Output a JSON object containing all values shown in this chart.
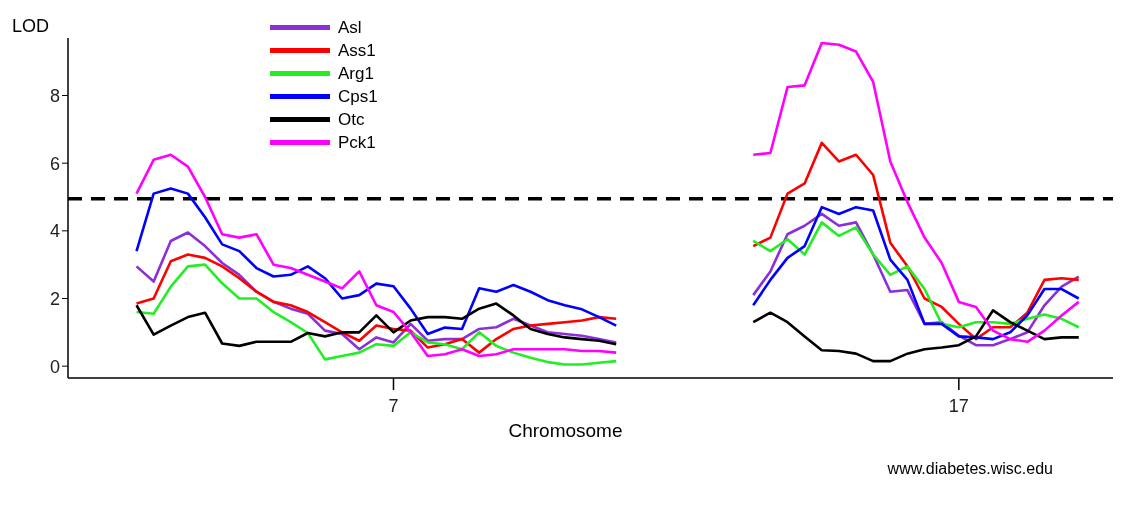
{
  "chart_data": {
    "type": "line",
    "xlabel": "Chromosome",
    "ylabel": "LOD",
    "categories": [
      null,
      null,
      null,
      null,
      null,
      null,
      null,
      null,
      null,
      null,
      null,
      null,
      null,
      null,
      null,
      null,
      null,
      null,
      null,
      "7",
      null,
      null,
      null,
      null,
      null,
      null,
      null,
      null,
      null,
      null,
      null,
      null,
      null,
      null,
      null,
      null,
      null,
      null,
      null,
      null,
      null,
      null,
      null,
      null,
      null,
      null,
      null,
      null,
      null,
      null,
      null,
      null,
      "17",
      null,
      null,
      null,
      null,
      null,
      null,
      null,
      null,
      null
    ],
    "series": [
      {
        "name": "Asl",
        "color": "#8b2fd8",
        "values": [
          null,
          null,
          null,
          null,
          2.95,
          2.5,
          3.7,
          3.95,
          3.55,
          3.05,
          2.7,
          2.2,
          1.9,
          1.7,
          1.55,
          1.05,
          0.95,
          0.5,
          0.85,
          0.7,
          1.25,
          0.75,
          0.8,
          0.8,
          1.1,
          1.15,
          1.4,
          1.2,
          1.0,
          0.95,
          0.9,
          0.8,
          0.7,
          null,
          null,
          null,
          null,
          null,
          null,
          null,
          2.1,
          2.8,
          3.9,
          4.15,
          4.5,
          4.15,
          4.25,
          3.3,
          2.2,
          2.25,
          1.25,
          1.3,
          0.9,
          0.62,
          0.62,
          0.8,
          1.0,
          1.8,
          2.35,
          2.65,
          null,
          null
        ]
      },
      {
        "name": "Ass1",
        "color": "#ff0000",
        "values": [
          null,
          null,
          null,
          null,
          1.85,
          2.0,
          3.1,
          3.3,
          3.2,
          2.95,
          2.6,
          2.2,
          1.9,
          1.8,
          1.6,
          1.3,
          1.0,
          0.75,
          1.2,
          1.1,
          1.05,
          0.55,
          0.65,
          0.8,
          0.4,
          0.8,
          1.1,
          1.2,
          1.25,
          1.3,
          1.35,
          1.45,
          1.4,
          null,
          null,
          null,
          null,
          null,
          null,
          null,
          3.55,
          3.8,
          5.1,
          5.4,
          6.6,
          6.05,
          6.25,
          5.65,
          3.65,
          2.95,
          2.0,
          1.75,
          1.25,
          0.8,
          1.15,
          1.15,
          1.58,
          2.55,
          2.6,
          2.55,
          null,
          null
        ]
      },
      {
        "name": "Arg1",
        "color": "#22ee22",
        "values": [
          null,
          null,
          null,
          null,
          1.6,
          1.55,
          2.35,
          2.95,
          3.0,
          2.45,
          2.0,
          2.0,
          1.6,
          1.3,
          0.98,
          0.2,
          0.3,
          0.4,
          0.65,
          0.6,
          1.0,
          0.7,
          0.65,
          0.5,
          1.0,
          0.6,
          0.4,
          0.25,
          0.12,
          0.05,
          0.05,
          0.1,
          0.15,
          null,
          null,
          null,
          null,
          null,
          null,
          null,
          3.7,
          3.4,
          3.75,
          3.3,
          4.25,
          3.85,
          4.1,
          3.3,
          2.7,
          2.95,
          2.28,
          1.25,
          1.15,
          1.3,
          1.3,
          1.25,
          1.4,
          1.53,
          1.4,
          1.15,
          null,
          null
        ]
      },
      {
        "name": "Cps1",
        "color": "#0000ff",
        "values": [
          null,
          null,
          null,
          null,
          3.4,
          5.1,
          5.25,
          5.1,
          4.4,
          3.6,
          3.4,
          2.9,
          2.65,
          2.7,
          2.95,
          2.6,
          2.0,
          2.1,
          2.44,
          2.36,
          1.7,
          0.95,
          1.14,
          1.1,
          2.3,
          2.2,
          2.4,
          2.2,
          1.95,
          1.8,
          1.68,
          1.45,
          1.2,
          null,
          null,
          null,
          null,
          null,
          null,
          null,
          1.8,
          2.55,
          3.2,
          3.55,
          4.7,
          4.5,
          4.7,
          4.6,
          3.15,
          2.55,
          1.25,
          1.25,
          0.88,
          0.85,
          0.8,
          1.0,
          1.5,
          2.28,
          2.28,
          2.0,
          null,
          null
        ]
      },
      {
        "name": "Otc",
        "color": "#000000",
        "values": [
          null,
          null,
          null,
          null,
          1.8,
          0.93,
          1.2,
          1.45,
          1.58,
          0.67,
          0.6,
          0.72,
          0.72,
          0.72,
          0.98,
          0.88,
          1.0,
          1.0,
          1.5,
          1.0,
          1.35,
          1.45,
          1.45,
          1.4,
          1.7,
          1.85,
          1.5,
          1.1,
          0.95,
          0.85,
          0.8,
          0.75,
          0.65,
          null,
          null,
          null,
          null,
          null,
          null,
          null,
          1.3,
          1.58,
          1.3,
          0.88,
          0.47,
          0.45,
          0.37,
          0.15,
          0.15,
          0.37,
          0.5,
          0.55,
          0.62,
          0.88,
          1.65,
          1.3,
          1.05,
          0.8,
          0.85,
          0.85,
          null,
          null
        ]
      },
      {
        "name": "Pck1",
        "color": "#ff00ff",
        "values": [
          null,
          null,
          null,
          null,
          5.1,
          6.1,
          6.25,
          5.9,
          5.0,
          3.9,
          3.8,
          3.9,
          3.0,
          2.9,
          2.7,
          2.5,
          2.3,
          2.8,
          1.8,
          1.6,
          1.0,
          0.3,
          0.35,
          0.5,
          0.3,
          0.35,
          0.5,
          0.5,
          0.5,
          0.5,
          0.45,
          0.45,
          0.4,
          null,
          null,
          null,
          null,
          null,
          null,
          null,
          6.25,
          6.3,
          8.25,
          8.3,
          9.55,
          9.5,
          9.3,
          8.4,
          6.05,
          4.85,
          3.8,
          3.05,
          1.9,
          1.75,
          1.05,
          0.8,
          0.72,
          1.05,
          1.5,
          1.9,
          null,
          null
        ]
      }
    ],
    "ylim": [
      -0.35,
      9.7
    ],
    "yticks": [
      0,
      2,
      4,
      6,
      8
    ],
    "ref_lines": [
      {
        "axis": "y",
        "value": 4.95,
        "color": "#000000",
        "line_style": "dashed"
      }
    ],
    "legend": "top left",
    "annotations": [
      "www.diabetes.wisc.edu"
    ]
  }
}
